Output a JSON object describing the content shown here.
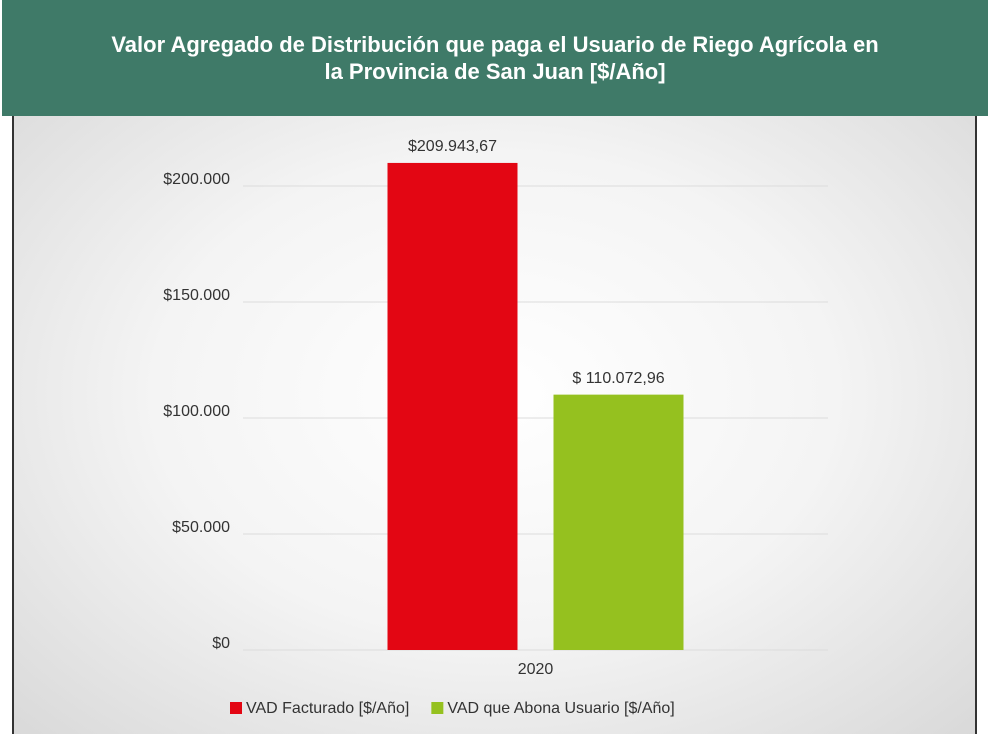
{
  "chart_data": {
    "type": "bar",
    "title": "Valor Agregado de Distribución que paga el Usuario de Riego Agrícola en la Provincia de San Juan [$/Año]",
    "categories": [
      "2020"
    ],
    "series": [
      {
        "name": "VAD Facturado [$/Año]",
        "color": "#e30613",
        "values": [
          209943.67
        ],
        "value_labels": [
          "$209.943,67"
        ]
      },
      {
        "name": "VAD que Abona Usuario [$/Año]",
        "color": "#95c11f",
        "values": [
          110072.96
        ],
        "value_labels": [
          "$ 110.072,96"
        ]
      }
    ],
    "ylim": [
      0,
      220000
    ],
    "yticks": [
      {
        "value": 0,
        "label": "$0"
      },
      {
        "value": 50000,
        "label": "$50.000"
      },
      {
        "value": 100000,
        "label": "$100.000"
      },
      {
        "value": 150000,
        "label": "$150.000"
      },
      {
        "value": 200000,
        "label": "$200.000"
      }
    ],
    "grid": true,
    "legend": "bottom"
  }
}
